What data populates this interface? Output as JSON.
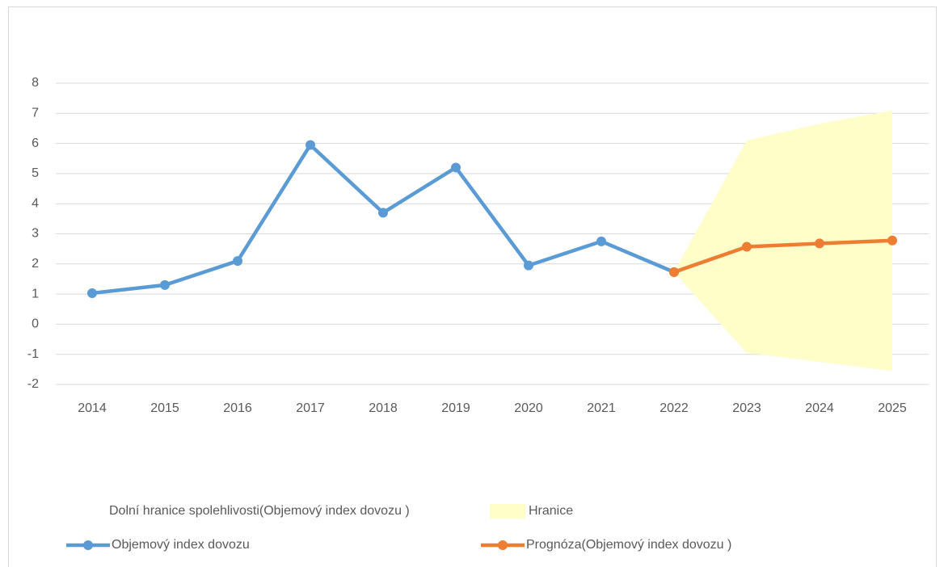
{
  "chart_data": {
    "type": "line",
    "categories": [
      "2014",
      "2015",
      "2016",
      "2017",
      "2018",
      "2019",
      "2020",
      "2021",
      "2022",
      "2023",
      "2024",
      "2025"
    ],
    "series": [
      {
        "name": "Dolní hranice spolehlivosti(Objemový index dovozu )",
        "style": "none",
        "color": "none",
        "values": [
          null,
          null,
          null,
          null,
          null,
          null,
          null,
          null,
          1.73,
          -0.95,
          -1.25,
          -1.55
        ]
      },
      {
        "name": "Hranice",
        "style": "stacked-area",
        "color": "#fffdc8",
        "values": [
          null,
          null,
          null,
          null,
          null,
          null,
          null,
          null,
          0,
          7.05,
          7.9,
          8.65
        ]
      },
      {
        "name": "Objemový index dovozu",
        "style": "line",
        "color": "#5b9bd5",
        "values": [
          1.03,
          1.3,
          2.1,
          5.95,
          3.7,
          5.2,
          1.95,
          2.75,
          1.73,
          null,
          null,
          null
        ]
      },
      {
        "name": "Prognóza(Objemový index dovozu )",
        "style": "line",
        "color": "#ed7d31",
        "values": [
          null,
          null,
          null,
          null,
          null,
          null,
          null,
          null,
          1.73,
          2.57,
          2.68,
          2.78
        ]
      }
    ],
    "ylim": [
      -2,
      8
    ],
    "yticks": [
      -2,
      -1,
      0,
      1,
      2,
      3,
      4,
      5,
      6,
      7,
      8
    ],
    "grid": true,
    "legend": "bottom"
  }
}
